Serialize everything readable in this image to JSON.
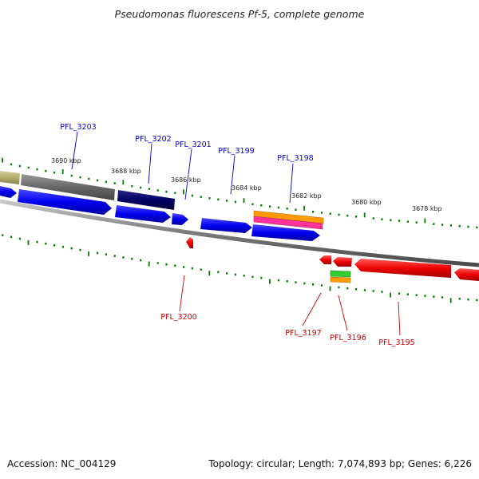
{
  "title": "Pseudomonas fluorescens Pf-5, complete genome",
  "footer": {
    "accession": "Accession: NC_004129",
    "summary": "Topology: circular; Length: 7,074,893 bp; Genes: 6,226"
  },
  "colors": {
    "forward_label": "#0000cc",
    "reverse_label": "#cc0000",
    "tick": "#0a7a0a",
    "backbone": "#777777"
  },
  "scale_labels": [
    "3690 kbp",
    "3688 kbp",
    "3686 kbp",
    "3684 kbp",
    "3682 kbp",
    "3680 kbp",
    "3678 kbp"
  ],
  "gene_labels": {
    "forward": [
      "PFL_3203",
      "PFL_3202",
      "PFL_3201",
      "PFL_3199",
      "PFL_3198"
    ],
    "reverse": [
      "PFL_3200",
      "PFL_3197",
      "PFL_3196",
      "PFL_3195"
    ]
  }
}
